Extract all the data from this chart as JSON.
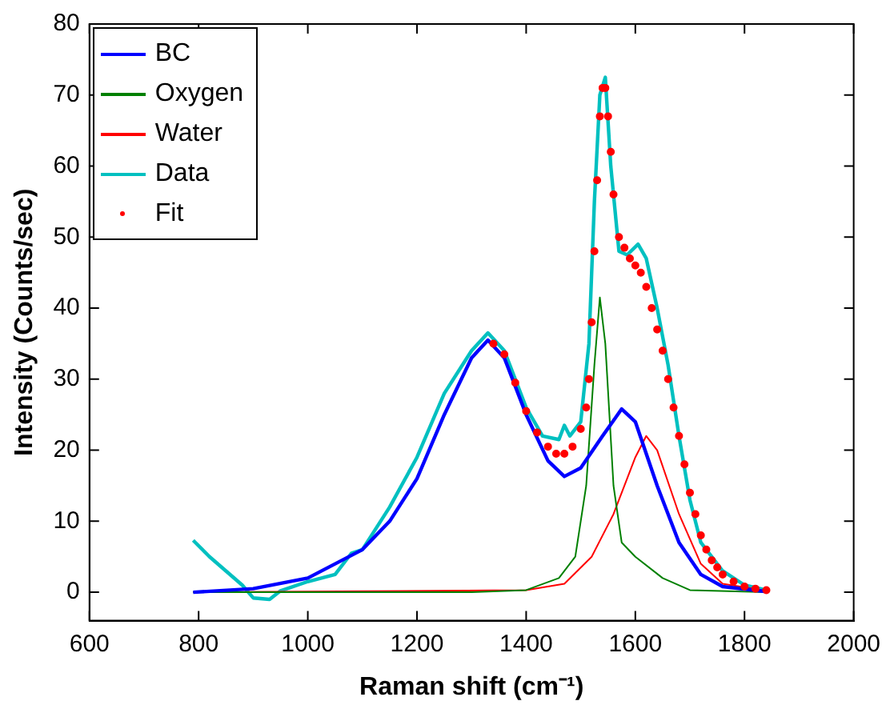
{
  "chart_data": {
    "type": "line",
    "xlabel": "Raman shift (cm⁻¹)",
    "ylabel": "Intensity (Counts/sec)",
    "xlim": [
      600,
      2000
    ],
    "xticks": [
      600,
      800,
      1000,
      1200,
      1400,
      1600,
      1800,
      2000
    ],
    "ylim": [
      -4,
      80
    ],
    "yticks": [
      0,
      10,
      20,
      30,
      40,
      50,
      60,
      70,
      80
    ],
    "grid": false,
    "legend": "top left",
    "series": [
      {
        "name": "BC",
        "color": "#0000ff",
        "x": [
          790,
          900,
          1000,
          1100,
          1150,
          1200,
          1250,
          1300,
          1330,
          1360,
          1400,
          1440,
          1470,
          1500,
          1540,
          1575,
          1600,
          1640,
          1680,
          1720,
          1760,
          1840
        ],
        "values": [
          0,
          0.5,
          2,
          6,
          10,
          16,
          25,
          33,
          35.5,
          33,
          25,
          18.5,
          16.3,
          17.5,
          22,
          25.8,
          24,
          15,
          7,
          2.5,
          0.8,
          0.1
        ]
      },
      {
        "name": "Oxygen",
        "color": "#008000",
        "x": [
          790,
          1300,
          1400,
          1460,
          1490,
          1510,
          1525,
          1535,
          1545,
          1560,
          1575,
          1600,
          1650,
          1700,
          1840
        ],
        "values": [
          0,
          0,
          0.3,
          2,
          5,
          15,
          32,
          41.5,
          35,
          15,
          7,
          5,
          2,
          0.3,
          0
        ]
      },
      {
        "name": "Water",
        "color": "#ff0000",
        "x": [
          790,
          1400,
          1470,
          1520,
          1560,
          1600,
          1620,
          1640,
          1680,
          1720,
          1760,
          1840
        ],
        "values": [
          0,
          0.3,
          1.2,
          5,
          11,
          19,
          22,
          20,
          11,
          4,
          1.2,
          0.2
        ]
      },
      {
        "name": "Data",
        "color": "#00c0c0",
        "x": [
          790,
          820,
          850,
          880,
          900,
          930,
          950,
          1000,
          1050,
          1080,
          1100,
          1150,
          1200,
          1250,
          1300,
          1330,
          1360,
          1400,
          1430,
          1460,
          1470,
          1480,
          1500,
          1515,
          1525,
          1535,
          1545,
          1555,
          1570,
          1585,
          1605,
          1620,
          1640,
          1660,
          1680,
          1700,
          1720,
          1760,
          1800,
          1840
        ],
        "values": [
          7.3,
          5,
          3,
          1,
          -0.8,
          -1,
          0.2,
          1.5,
          2.5,
          5.5,
          6,
          12,
          19,
          28,
          34,
          36.5,
          34,
          26,
          22,
          21.5,
          23.5,
          22,
          24,
          35,
          55,
          70,
          72.5,
          60,
          48,
          47.5,
          49,
          47,
          40,
          32,
          22,
          13,
          7,
          3,
          1,
          0.3
        ]
      },
      {
        "name": "Fit",
        "color": "#ff0000",
        "type": "scatter",
        "marker": "circle",
        "x": [
          1340,
          1360,
          1380,
          1400,
          1420,
          1440,
          1455,
          1470,
          1485,
          1500,
          1510,
          1515,
          1520,
          1525,
          1530,
          1535,
          1540,
          1545,
          1550,
          1555,
          1560,
          1570,
          1580,
          1590,
          1600,
          1610,
          1620,
          1630,
          1640,
          1650,
          1660,
          1670,
          1680,
          1690,
          1700,
          1710,
          1720,
          1730,
          1740,
          1750,
          1760,
          1780,
          1800,
          1820,
          1840
        ],
        "values": [
          35,
          33.5,
          29.5,
          25.5,
          22.5,
          20.5,
          19.5,
          19.5,
          20.5,
          23,
          26,
          30,
          38,
          48,
          58,
          67,
          71,
          71,
          67,
          62,
          56,
          50,
          48.5,
          47,
          46,
          45,
          43,
          40,
          37,
          34,
          30,
          26,
          22,
          18,
          14,
          11,
          8,
          6,
          4.5,
          3.5,
          2.5,
          1.5,
          0.8,
          0.5,
          0.3
        ]
      }
    ]
  }
}
